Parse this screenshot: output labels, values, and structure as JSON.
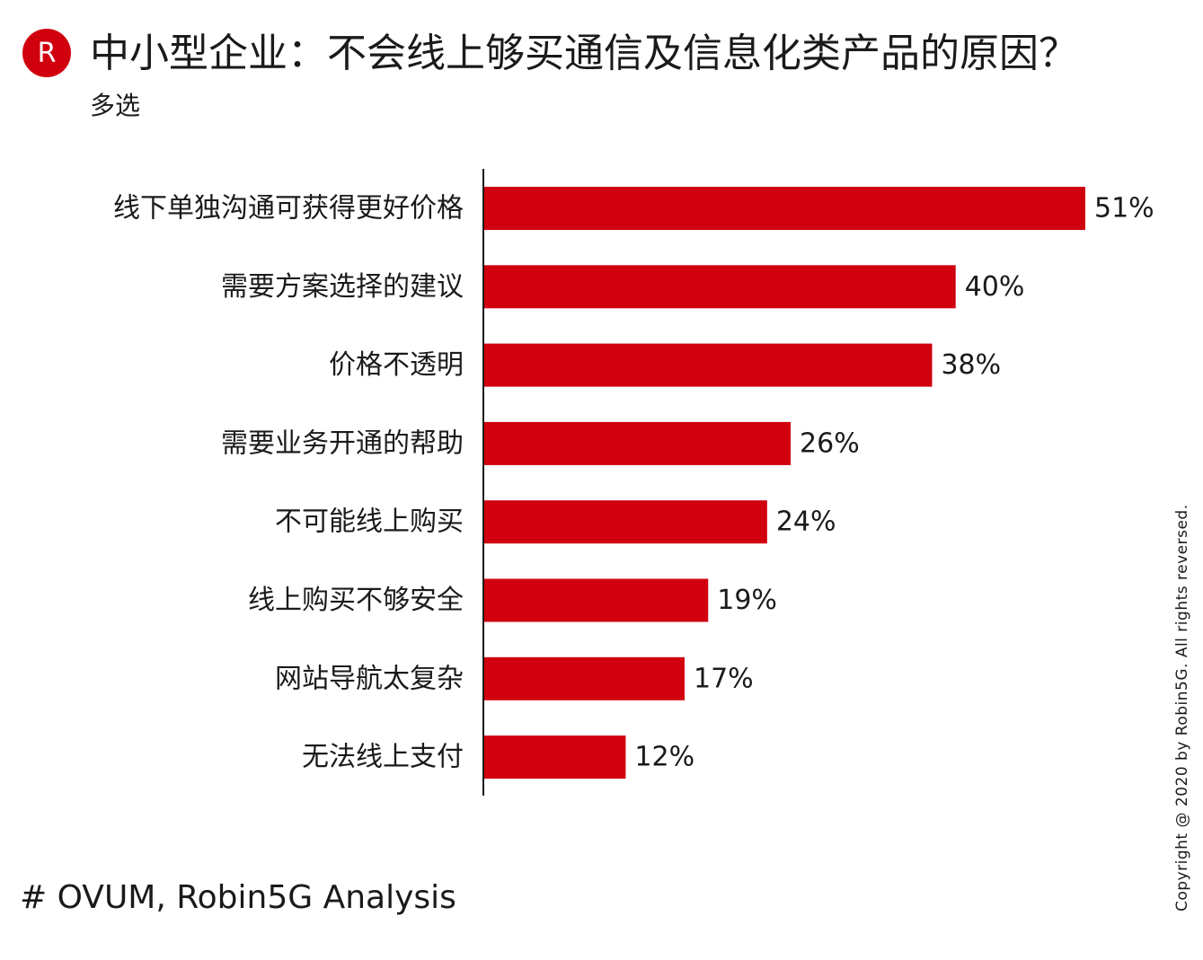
{
  "header": {
    "logo_letter": "R",
    "title": "中小型企业：不会线上够买通信及信息化类产品的原因？",
    "subtitle": "多选"
  },
  "chart_data": {
    "type": "bar",
    "orientation": "horizontal",
    "title": "中小型企业：不会线上够买通信及信息化类产品的原因？",
    "subtitle": "多选",
    "categories": [
      "线下单独沟通可获得更好价格",
      "需要方案选择的建议",
      "价格不透明",
      "需要业务开通的帮助",
      "不可能线上购买",
      "线上购买不够安全",
      "网站导航太复杂",
      "无法线上支付"
    ],
    "values": [
      51,
      40,
      38,
      26,
      24,
      19,
      17,
      12
    ],
    "value_labels": [
      "51%",
      "40%",
      "38%",
      "26%",
      "24%",
      "19%",
      "17%",
      "12%"
    ],
    "xlim": [
      0,
      51
    ],
    "grid": false,
    "legend": "none",
    "bar_color": "#d0000f"
  },
  "footer": {
    "source": "# OVUM, Robin5G Analysis",
    "copyright": "Copyright @ 2020 by Robin5G. All rights reversed."
  }
}
